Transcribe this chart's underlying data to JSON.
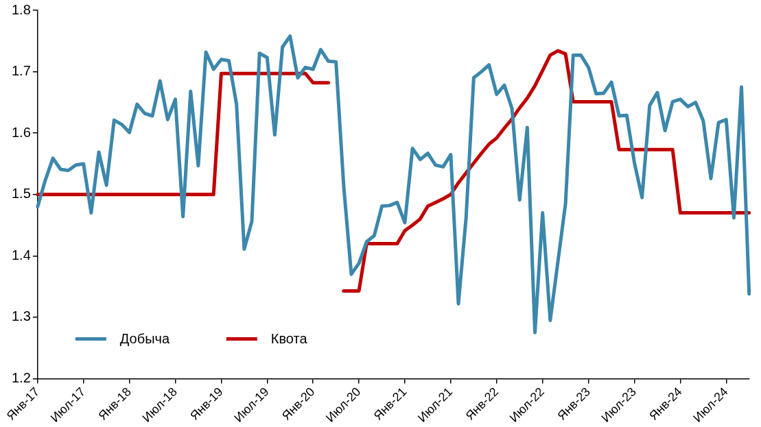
{
  "chart_data": {
    "type": "line",
    "categories": [
      "Янв-17",
      null,
      null,
      null,
      null,
      null,
      "Июл-17",
      null,
      null,
      null,
      null,
      null,
      "Янв-18",
      null,
      null,
      null,
      null,
      null,
      "Июл-18",
      null,
      null,
      null,
      null,
      null,
      "Янв-19",
      null,
      null,
      null,
      null,
      null,
      "Июл-19",
      null,
      null,
      null,
      null,
      null,
      "Янв-20",
      null,
      null,
      null,
      null,
      null,
      "Июл-20",
      null,
      null,
      null,
      null,
      null,
      "Янв-21",
      null,
      null,
      null,
      null,
      null,
      "Июл-21",
      null,
      null,
      null,
      null,
      null,
      "Янв-22",
      null,
      null,
      null,
      null,
      null,
      "Июл-22",
      null,
      null,
      null,
      null,
      null,
      "Янв-23",
      null,
      null,
      null,
      null,
      null,
      "Июл-23",
      null,
      null,
      null,
      null,
      null,
      "Янв-24",
      null,
      null,
      null,
      null,
      null,
      "Июл-24",
      null,
      null,
      null
    ],
    "series": [
      {
        "name": "Добыча",
        "color": "#3c87ac",
        "values": [
          1.48,
          1.523,
          1.559,
          1.541,
          1.539,
          1.548,
          1.55,
          1.47,
          1.569,
          1.515,
          1.621,
          1.614,
          1.601,
          1.647,
          1.632,
          1.628,
          1.685,
          1.622,
          1.655,
          1.464,
          1.668,
          1.547,
          1.732,
          1.704,
          1.72,
          1.718,
          1.647,
          1.411,
          1.456,
          1.73,
          1.723,
          1.597,
          1.74,
          1.758,
          1.69,
          1.707,
          1.704,
          1.736,
          1.717,
          1.716,
          1.515,
          1.37,
          1.388,
          1.423,
          1.433,
          1.481,
          1.482,
          1.487,
          1.454,
          1.575,
          1.557,
          1.567,
          1.548,
          1.545,
          1.565,
          1.322,
          1.462,
          1.69,
          1.7,
          1.711,
          1.663,
          1.678,
          1.64,
          1.491,
          1.609,
          1.275,
          1.47,
          1.295,
          1.39,
          1.485,
          1.727,
          1.727,
          1.707,
          1.664,
          1.665,
          1.683,
          1.628,
          1.629,
          1.552,
          1.495,
          1.645,
          1.666,
          1.604,
          1.651,
          1.655,
          1.643,
          1.65,
          1.62,
          1.526,
          1.617,
          1.622,
          1.462,
          1.675,
          1.338
        ]
      },
      {
        "name": "Квота",
        "color": "#c00000",
        "values": [
          1.5,
          1.5,
          1.5,
          1.5,
          1.5,
          1.5,
          1.5,
          1.5,
          1.5,
          1.5,
          1.5,
          1.5,
          1.5,
          1.5,
          1.5,
          1.5,
          1.5,
          1.5,
          1.5,
          1.5,
          1.5,
          1.5,
          1.5,
          1.5,
          1.697,
          1.697,
          1.697,
          1.697,
          1.697,
          1.697,
          1.697,
          1.697,
          1.697,
          1.697,
          1.697,
          1.697,
          1.682,
          1.682,
          1.682,
          null,
          1.343,
          1.343,
          1.343,
          1.42,
          1.42,
          1.42,
          1.42,
          1.42,
          1.441,
          1.45,
          1.46,
          1.481,
          1.487,
          1.493,
          1.5,
          1.519,
          1.535,
          1.551,
          1.567,
          1.582,
          1.592,
          1.608,
          1.623,
          1.641,
          1.657,
          1.677,
          1.702,
          1.727,
          1.734,
          1.729,
          1.651,
          1.651,
          1.651,
          1.651,
          1.651,
          1.651,
          1.573,
          1.573,
          1.573,
          1.573,
          1.573,
          1.573,
          1.573,
          1.573,
          1.47,
          1.47,
          1.47,
          1.47,
          1.47,
          1.47,
          1.47,
          1.47,
          1.47,
          1.47
        ]
      }
    ],
    "ylim": [
      1.2,
      1.8
    ],
    "yticks": [
      1.2,
      1.3,
      1.4,
      1.5,
      1.6,
      1.7,
      1.8
    ],
    "grid": false,
    "legend": "bottom left",
    "marker": "none",
    "line_style": "solid"
  }
}
